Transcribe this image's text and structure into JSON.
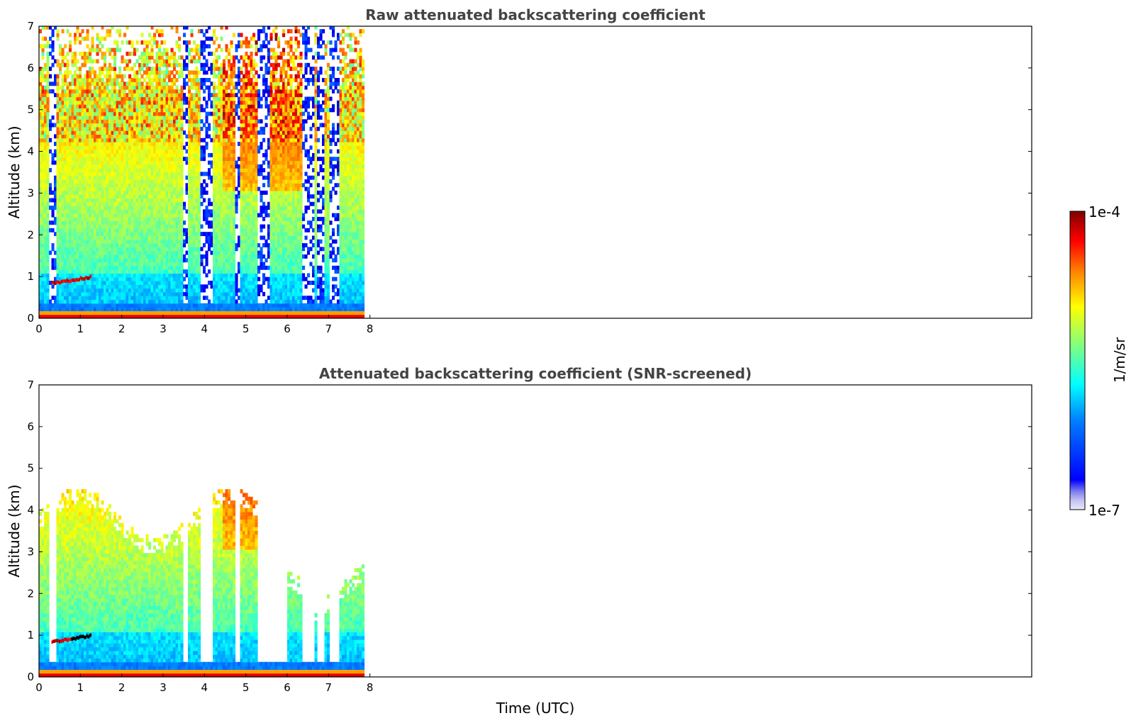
{
  "colors": {
    "jet": [
      "#00008f",
      "#0000ff",
      "#0080ff",
      "#00ffff",
      "#80ff80",
      "#ffff00",
      "#ff8000",
      "#ff0000",
      "#800000"
    ],
    "low_end": [
      "#e8e8f8",
      "#c4c4f4",
      "#a0a0f0",
      "#7070f4"
    ],
    "axis": "#000000",
    "title": "#444444"
  },
  "chart_data": [
    {
      "type": "heatmap",
      "title": "Raw attenuated backscattering coefficient",
      "xlabel": "",
      "ylabel": "Altitude (km)",
      "xlim": [
        0,
        24
      ],
      "ylim": [
        0,
        7
      ],
      "xticks": [
        0,
        1,
        2,
        3,
        4,
        5,
        6,
        7,
        8
      ],
      "yticks": [
        0,
        1,
        2,
        3,
        4,
        5,
        6,
        7
      ],
      "data_end_time": 7.8,
      "cloud_layer": {
        "start": 0.3,
        "end": 1.25,
        "altitude_start": 0.8,
        "altitude_end": 0.95
      },
      "cloud_gaps": [
        [
          0.22,
          0.4
        ],
        [
          3.45,
          3.55
        ],
        [
          3.9,
          4.15
        ],
        [
          4.7,
          4.85
        ],
        [
          5.25,
          5.55
        ],
        [
          6.35,
          6.6
        ],
        [
          6.7,
          6.85
        ],
        [
          7.0,
          7.2
        ]
      ],
      "snr_screened": false
    },
    {
      "type": "heatmap",
      "title": "Attenuated backscattering coefficient (SNR-screened)",
      "xlabel": "Time (UTC)",
      "ylabel": "Altitude (km)",
      "xlim": [
        0,
        24
      ],
      "ylim": [
        0,
        7
      ],
      "xticks": [
        0,
        1,
        2,
        3,
        4,
        5,
        6,
        7,
        8
      ],
      "yticks": [
        0,
        1,
        2,
        3,
        4,
        5,
        6,
        7
      ],
      "data_end_time": 7.8,
      "cloud_layer": {
        "start": 0.3,
        "end": 1.25,
        "altitude_start": 0.8,
        "altitude_end": 0.95
      },
      "cloud_gaps": [
        [
          0.22,
          0.4
        ],
        [
          3.45,
          3.55
        ],
        [
          3.9,
          4.15
        ],
        [
          4.7,
          4.85
        ],
        [
          5.25,
          5.95
        ],
        [
          6.35,
          6.6
        ],
        [
          6.7,
          6.85
        ],
        [
          7.0,
          7.2
        ]
      ],
      "snr_screened": true
    }
  ],
  "colorbar": {
    "label": "1/m/sr",
    "min_label": "1e-7",
    "max_label": "1e-4",
    "scale": "log"
  }
}
